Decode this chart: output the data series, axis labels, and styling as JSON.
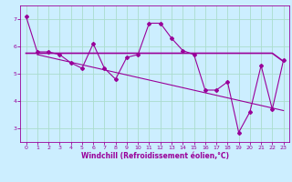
{
  "x": [
    0,
    1,
    2,
    3,
    4,
    5,
    6,
    7,
    8,
    9,
    10,
    11,
    12,
    13,
    14,
    15,
    16,
    17,
    18,
    19,
    20,
    21,
    22,
    23
  ],
  "y_main": [
    7.1,
    5.8,
    5.8,
    5.7,
    5.4,
    5.2,
    6.1,
    5.2,
    4.8,
    5.6,
    5.7,
    6.85,
    6.85,
    6.3,
    5.85,
    5.7,
    4.4,
    4.4,
    4.7,
    2.85,
    3.6,
    5.3,
    3.7,
    5.5
  ],
  "y_flat": [
    5.75,
    5.75,
    5.75,
    5.75,
    5.75,
    5.75,
    5.75,
    5.75,
    5.75,
    5.75,
    5.75,
    5.75,
    5.75,
    5.75,
    5.75,
    5.75,
    5.75,
    5.75,
    5.75,
    5.75,
    5.75,
    5.75,
    5.75,
    5.45
  ],
  "y_diag_start": 5.7,
  "y_diag_end": 3.65,
  "line_color": "#990099",
  "bg_color": "#cceeff",
  "grid_color": "#aaddcc",
  "xlabel": "Windchill (Refroidissement éolien,°C)",
  "xlim": [
    -0.5,
    23.5
  ],
  "ylim": [
    2.5,
    7.5
  ],
  "yticks": [
    3,
    4,
    5,
    6,
    7
  ],
  "xticks": [
    0,
    1,
    2,
    3,
    4,
    5,
    6,
    7,
    8,
    9,
    10,
    11,
    12,
    13,
    14,
    15,
    16,
    17,
    18,
    19,
    20,
    21,
    22,
    23
  ],
  "tick_fontsize": 4.5,
  "xlabel_fontsize": 5.5
}
